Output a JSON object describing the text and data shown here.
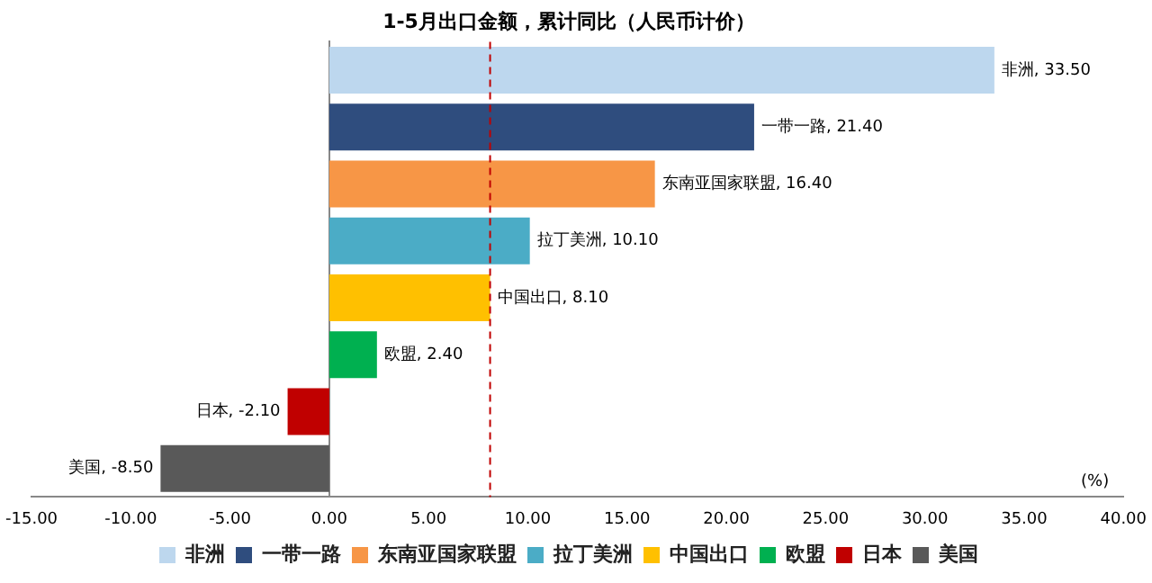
{
  "chart_data": {
    "type": "bar",
    "orientation": "horizontal",
    "title": "1-5月出口金额，累计同比（人民币计价）",
    "xlabel": "(%)",
    "categories": [
      null,
      null,
      null,
      null,
      null,
      null,
      null,
      null
    ],
    "series": [
      {
        "name": "非洲",
        "color": "#bdd7ee",
        "values": [
          33.5,
          null,
          null,
          null,
          null,
          null,
          null,
          null
        ],
        "value_labels": [
          "非洲, 33.50",
          null,
          null,
          null,
          null,
          null,
          null,
          null
        ]
      },
      {
        "name": "一带一路",
        "color": "#2f4d7e",
        "values": [
          null,
          21.4,
          null,
          null,
          null,
          null,
          null,
          null
        ],
        "value_labels": [
          null,
          "一带一路, 21.40",
          null,
          null,
          null,
          null,
          null,
          null
        ]
      },
      {
        "name": "东南亚国家联盟",
        "color": "#f79646",
        "values": [
          null,
          null,
          16.4,
          null,
          null,
          null,
          null,
          null
        ],
        "value_labels": [
          null,
          null,
          "东南亚国家联盟, 16.40",
          null,
          null,
          null,
          null,
          null
        ]
      },
      {
        "name": "拉丁美洲",
        "color": "#4bacc6",
        "values": [
          null,
          null,
          null,
          10.1,
          null,
          null,
          null,
          null
        ],
        "value_labels": [
          null,
          null,
          null,
          "拉丁美洲, 10.10",
          null,
          null,
          null,
          null
        ]
      },
      {
        "name": "中国出口",
        "color": "#ffc000",
        "values": [
          null,
          null,
          null,
          null,
          8.1,
          null,
          null,
          null
        ],
        "value_labels": [
          null,
          null,
          null,
          null,
          "中国出口, 8.10",
          null,
          null,
          null
        ]
      },
      {
        "name": "欧盟",
        "color": "#00b050",
        "values": [
          null,
          null,
          null,
          null,
          null,
          2.4,
          null,
          null
        ],
        "value_labels": [
          null,
          null,
          null,
          null,
          null,
          "欧盟, 2.40",
          null,
          null
        ]
      },
      {
        "name": "日本",
        "color": "#c00000",
        "values": [
          null,
          null,
          null,
          null,
          null,
          null,
          -2.1,
          null
        ],
        "value_labels": [
          null,
          null,
          null,
          null,
          null,
          null,
          "日本, -2.10",
          null
        ]
      },
      {
        "name": "美国",
        "color": "#595959",
        "values": [
          null,
          null,
          null,
          null,
          null,
          null,
          null,
          -8.5
        ],
        "value_labels": [
          null,
          null,
          null,
          null,
          null,
          null,
          null,
          "美国, -8.50"
        ]
      }
    ],
    "xlim": [
      -15,
      40
    ],
    "xticks": [
      {
        "value": -15,
        "label": "-15.00"
      },
      {
        "value": -10,
        "label": "-10.00"
      },
      {
        "value": -5,
        "label": "-5.00"
      },
      {
        "value": 0,
        "label": "0.00"
      },
      {
        "value": 5,
        "label": "5.00"
      },
      {
        "value": 10,
        "label": "10.00"
      },
      {
        "value": 15,
        "label": "15.00"
      },
      {
        "value": 20,
        "label": "20.00"
      },
      {
        "value": 25,
        "label": "25.00"
      },
      {
        "value": 30,
        "label": "30.00"
      },
      {
        "value": 35,
        "label": "35.00"
      },
      {
        "value": 40,
        "label": "40.00"
      }
    ],
    "ref_lines": [
      {
        "axis": "x",
        "value": 8.1,
        "color": "#c00000",
        "line_style": "dashed"
      }
    ],
    "tick_labels": "x",
    "legend": "bottom"
  }
}
